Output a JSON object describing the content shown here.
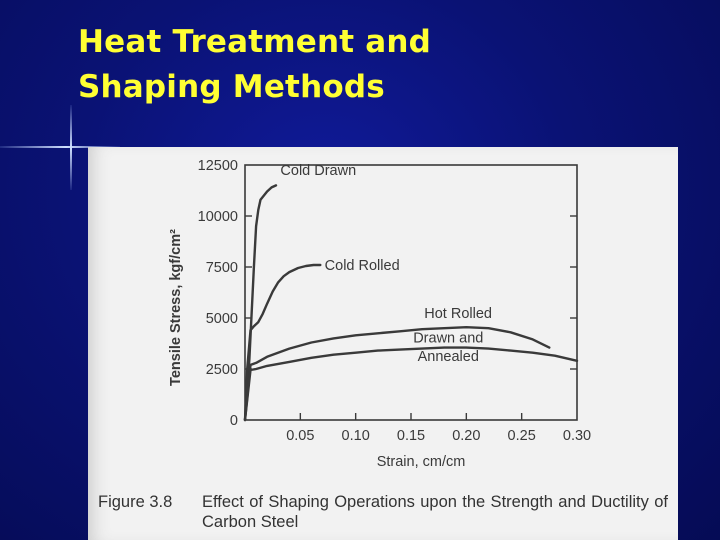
{
  "slide": {
    "title_line1": "Heat Treatment and",
    "title_line2": "Shaping Methods",
    "colors": {
      "background": "#0a1274",
      "title": "#ffff33",
      "panel": "#f2f2f2"
    }
  },
  "figure": {
    "number": "Figure 3.8",
    "caption": "Effect of Shaping Operations upon the Strength and Ductility of Carbon Steel"
  },
  "chart_data": {
    "type": "line",
    "xlabel": "Strain, cm/cm",
    "ylabel": "Tensile Stress, kgf/cm²",
    "xlim": [
      0,
      0.3
    ],
    "ylim": [
      0,
      12500
    ],
    "xticks": [
      0.05,
      0.1,
      0.15,
      0.2,
      0.25,
      0.3
    ],
    "xtick_labels": [
      "0.05",
      "0.10",
      "0.15",
      "0.20",
      "0.25",
      "0.30"
    ],
    "yticks": [
      0,
      2500,
      5000,
      7500,
      10000,
      12500
    ],
    "ytick_labels": [
      "0",
      "2500",
      "5000",
      "7500",
      "10000",
      "12500"
    ],
    "grid": false,
    "series": [
      {
        "name": "Cold Drawn",
        "x": [
          0,
          0.004,
          0.008,
          0.01,
          0.012,
          0.014,
          0.017,
          0.02,
          0.024,
          0.028
        ],
        "y": [
          0,
          3000,
          7500,
          9500,
          10300,
          10800,
          11000,
          11200,
          11400,
          11500
        ]
      },
      {
        "name": "Cold Rolled",
        "x": [
          0,
          0.002,
          0.005,
          0.008,
          0.012,
          0.016,
          0.02,
          0.025,
          0.03,
          0.035,
          0.04,
          0.048,
          0.055,
          0.062,
          0.068
        ],
        "y": [
          0,
          2500,
          4400,
          4600,
          4800,
          5200,
          5700,
          6300,
          6750,
          7050,
          7250,
          7450,
          7550,
          7600,
          7600
        ]
      },
      {
        "name": "Hot Rolled",
        "x": [
          0,
          0.005,
          0.01,
          0.02,
          0.04,
          0.06,
          0.08,
          0.1,
          0.12,
          0.14,
          0.16,
          0.18,
          0.2,
          0.22,
          0.24,
          0.26,
          0.275
        ],
        "y": [
          0,
          2700,
          2800,
          3100,
          3500,
          3800,
          4000,
          4150,
          4250,
          4350,
          4450,
          4500,
          4550,
          4500,
          4300,
          3950,
          3550
        ]
      },
      {
        "name": "Drawn and Annealed",
        "x": [
          0,
          0.005,
          0.01,
          0.02,
          0.04,
          0.06,
          0.08,
          0.1,
          0.12,
          0.14,
          0.16,
          0.18,
          0.2,
          0.22,
          0.24,
          0.26,
          0.28,
          0.3
        ],
        "y": [
          0,
          2450,
          2500,
          2650,
          2850,
          3050,
          3200,
          3300,
          3400,
          3450,
          3500,
          3550,
          3550,
          3500,
          3400,
          3300,
          3150,
          2900
        ]
      }
    ],
    "annotations": [
      {
        "series": "Cold Drawn",
        "text": "Cold Drawn",
        "x": 0.032,
        "y": 12000
      },
      {
        "series": "Cold Rolled",
        "text": "Cold Rolled",
        "x": 0.072,
        "y": 7350
      },
      {
        "series": "Hot Rolled",
        "text": "Hot Rolled",
        "x": 0.162,
        "y": 5000
      },
      {
        "series": "Drawn and Annealed",
        "text": "Drawn and",
        "x": 0.152,
        "y": 3800
      },
      {
        "series": "Drawn and Annealed",
        "text": "Annealed",
        "x": 0.156,
        "y": 2900
      }
    ]
  }
}
